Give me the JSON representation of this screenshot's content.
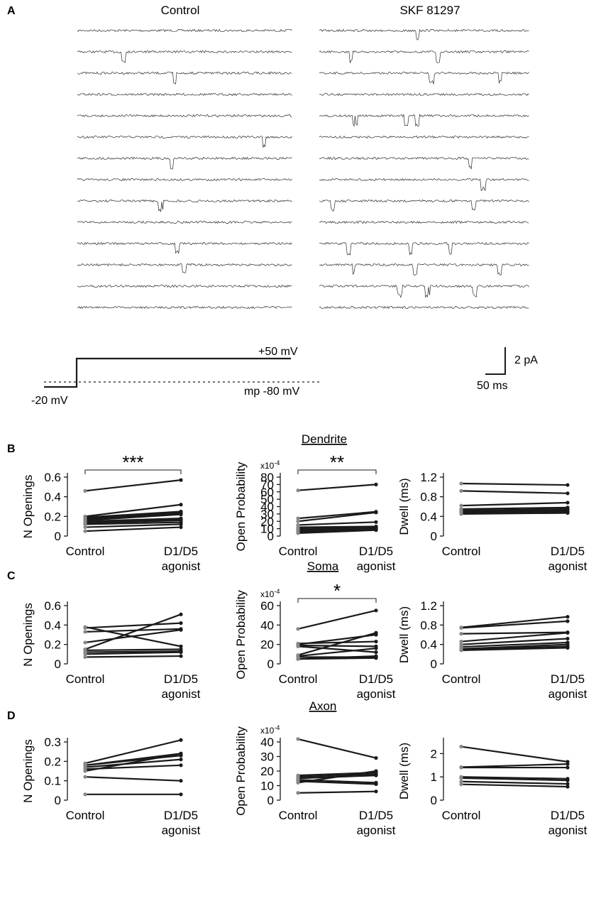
{
  "panelA": {
    "panel_letter": "A",
    "control_title": "Control",
    "skf_title": "SKF 81297",
    "step_high_label": "+50 mV",
    "step_low_label": "-20 mV",
    "holding_label": "mp -80 mV",
    "scale_y_label": "2 pA",
    "scale_x_label": "50 ms",
    "sweep_count": 14
  },
  "colors": {
    "line": "#1a1a1a",
    "control_marker": "#888888",
    "axis": "#1a1a1a"
  },
  "chart_data": [
    {
      "id": "B1",
      "panel_letter": "B",
      "section_title": "Dendrite",
      "type": "line",
      "ylabel": "N Openings",
      "categories": [
        "Control",
        "D1/D5\nagonist"
      ],
      "yticks": [
        "0",
        "0.2",
        "0.4",
        "0.6"
      ],
      "ylim": [
        0,
        0.6
      ],
      "exponent": "",
      "significance": "***",
      "pairs": [
        [
          0.46,
          0.57
        ],
        [
          0.2,
          0.32
        ],
        [
          0.19,
          0.25
        ],
        [
          0.18,
          0.24
        ],
        [
          0.17,
          0.23
        ],
        [
          0.16,
          0.22
        ],
        [
          0.15,
          0.18
        ],
        [
          0.14,
          0.17
        ],
        [
          0.13,
          0.16
        ],
        [
          0.12,
          0.14
        ],
        [
          0.09,
          0.12
        ],
        [
          0.05,
          0.09
        ]
      ]
    },
    {
      "id": "B2",
      "panel_letter": "",
      "section_title": "",
      "type": "line",
      "ylabel": "Open Probability",
      "categories": [
        "Control",
        "D1/D5\nagonist"
      ],
      "yticks": [
        "0",
        "10",
        "20",
        "30",
        "40",
        "50",
        "60",
        "70",
        "80"
      ],
      "ylim": [
        0,
        80
      ],
      "exponent": "x10",
      "significance": "**",
      "pairs": [
        [
          62,
          70
        ],
        [
          24,
          33
        ],
        [
          20,
          32
        ],
        [
          15,
          19
        ],
        [
          12,
          13
        ],
        [
          10,
          12
        ],
        [
          8,
          11
        ],
        [
          7,
          10
        ],
        [
          6,
          11
        ],
        [
          5,
          9
        ],
        [
          4,
          8
        ]
      ]
    },
    {
      "id": "B3",
      "panel_letter": "",
      "section_title": "",
      "type": "line",
      "ylabel": "Dwell (ms)",
      "categories": [
        "Control",
        "D1/D5\nagonist"
      ],
      "yticks": [
        "0",
        "0.4",
        "0.8",
        "1.2"
      ],
      "ylim": [
        0,
        1.2
      ],
      "exponent": "",
      "significance": "",
      "pairs": [
        [
          1.07,
          1.04
        ],
        [
          0.92,
          0.87
        ],
        [
          0.62,
          0.68
        ],
        [
          0.55,
          0.58
        ],
        [
          0.52,
          0.55
        ],
        [
          0.5,
          0.53
        ],
        [
          0.48,
          0.5
        ],
        [
          0.46,
          0.49
        ],
        [
          0.45,
          0.47
        ]
      ]
    },
    {
      "id": "C1",
      "panel_letter": "C",
      "section_title": "Soma",
      "type": "line",
      "ylabel": "N Openings",
      "categories": [
        "Control",
        "D1/D5\nagonist"
      ],
      "yticks": [
        "0",
        "0.2",
        "0.4",
        "0.6"
      ],
      "ylim": [
        0,
        0.6
      ],
      "exponent": "",
      "significance": "",
      "pairs": [
        [
          0.38,
          0.18
        ],
        [
          0.37,
          0.42
        ],
        [
          0.33,
          0.36
        ],
        [
          0.22,
          0.35
        ],
        [
          0.15,
          0.51
        ],
        [
          0.14,
          0.15
        ],
        [
          0.12,
          0.13
        ],
        [
          0.1,
          0.12
        ],
        [
          0.07,
          0.08
        ]
      ]
    },
    {
      "id": "C2",
      "panel_letter": "",
      "section_title": "",
      "type": "line",
      "ylabel": "Open Probability",
      "categories": [
        "Control",
        "D1/D5\nagonist"
      ],
      "yticks": [
        "0",
        "20",
        "40",
        "60"
      ],
      "ylim": [
        0,
        60
      ],
      "exponent": "x10",
      "significance": "*",
      "pairs": [
        [
          36,
          55
        ],
        [
          21,
          23
        ],
        [
          20,
          30
        ],
        [
          19,
          18
        ],
        [
          18,
          12
        ],
        [
          9,
          32
        ],
        [
          8,
          16
        ],
        [
          7,
          7
        ],
        [
          5,
          8
        ],
        [
          5,
          6
        ]
      ]
    },
    {
      "id": "C3",
      "panel_letter": "",
      "section_title": "",
      "type": "line",
      "ylabel": "Dwell (ms)",
      "categories": [
        "Control",
        "D1/D5\nagonist"
      ],
      "yticks": [
        "0",
        "0.4",
        "0.8",
        "1.2"
      ],
      "ylim": [
        0,
        1.2
      ],
      "exponent": "",
      "significance": "",
      "pairs": [
        [
          0.75,
          0.97
        ],
        [
          0.74,
          0.88
        ],
        [
          0.62,
          0.65
        ],
        [
          0.46,
          0.64
        ],
        [
          0.4,
          0.52
        ],
        [
          0.35,
          0.44
        ],
        [
          0.31,
          0.4
        ],
        [
          0.3,
          0.36
        ],
        [
          0.28,
          0.33
        ]
      ]
    },
    {
      "id": "D1",
      "panel_letter": "D",
      "section_title": "Axon",
      "type": "line",
      "ylabel": "N Openings",
      "categories": [
        "Control",
        "D1/D5\nagonist"
      ],
      "yticks": [
        "0",
        "0.1",
        "0.2",
        "0.3"
      ],
      "ylim": [
        0,
        0.3
      ],
      "exponent": "",
      "significance": "",
      "pairs": [
        [
          0.19,
          0.31
        ],
        [
          0.18,
          0.24
        ],
        [
          0.18,
          0.23
        ],
        [
          0.17,
          0.21
        ],
        [
          0.16,
          0.18
        ],
        [
          0.15,
          0.24
        ],
        [
          0.12,
          0.1
        ],
        [
          0.03,
          0.03
        ]
      ]
    },
    {
      "id": "D2",
      "panel_letter": "",
      "section_title": "",
      "type": "line",
      "ylabel": "Open Probability",
      "categories": [
        "Control",
        "D1/D5\nagonist"
      ],
      "yticks": [
        "0",
        "10",
        "20",
        "30",
        "40"
      ],
      "ylim": [
        0,
        40
      ],
      "exponent": "x10",
      "significance": "",
      "pairs": [
        [
          42,
          29
        ],
        [
          17,
          19
        ],
        [
          16,
          18
        ],
        [
          15,
          17
        ],
        [
          14,
          12
        ],
        [
          13,
          11
        ],
        [
          12,
          20
        ],
        [
          5,
          6
        ]
      ]
    },
    {
      "id": "D3",
      "panel_letter": "",
      "section_title": "",
      "type": "line",
      "ylabel": "Dwell (ms)",
      "categories": [
        "Control",
        "D1/D5\nagonist"
      ],
      "yticks": [
        "0",
        "1",
        "2"
      ],
      "ylim": [
        0,
        2.5
      ],
      "exponent": "",
      "significance": "",
      "pairs": [
        [
          2.3,
          1.65
        ],
        [
          1.42,
          1.55
        ],
        [
          1.4,
          1.4
        ],
        [
          1.0,
          0.92
        ],
        [
          0.95,
          0.85
        ],
        [
          0.8,
          0.7
        ],
        [
          0.68,
          0.58
        ]
      ]
    }
  ]
}
